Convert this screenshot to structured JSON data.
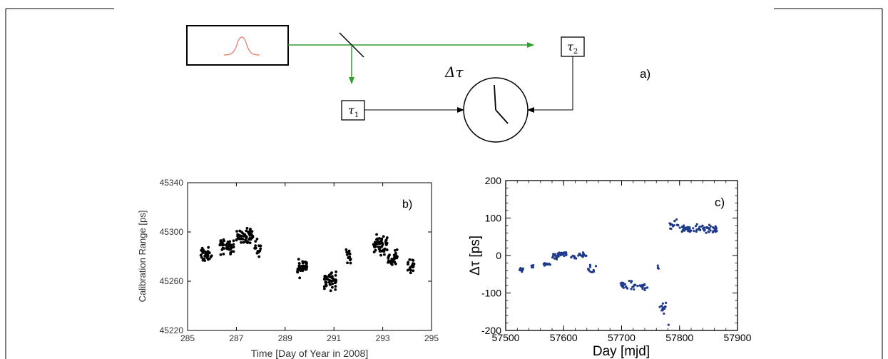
{
  "diagram": {
    "panel_label": "a)",
    "delta_tau": "Δτ",
    "tau1": {
      "symbol": "τ",
      "sub": "1"
    },
    "tau2": {
      "symbol": "τ",
      "sub": "2"
    }
  },
  "chart_data": [
    {
      "type": "scatter",
      "panel_label": "b)",
      "xlabel": "Time [Day of Year in 2008]",
      "ylabel": "Calibration Range [ps]",
      "xlim": [
        285,
        295
      ],
      "ylim": [
        45220,
        45340
      ],
      "xticks": [
        285,
        287,
        289,
        291,
        293,
        295
      ],
      "yticks": [
        45220,
        45260,
        45300,
        45340
      ],
      "marker_color": "#000000",
      "clusters": [
        {
          "x_range": [
            285.5,
            286.0
          ],
          "y_center": 45281,
          "y_spread": 5,
          "n": 40
        },
        {
          "x_range": [
            286.3,
            286.9
          ],
          "y_center": 45288,
          "y_spread": 5,
          "n": 42
        },
        {
          "x_range": [
            287.0,
            287.7
          ],
          "y_center": 45297,
          "y_spread": 5,
          "n": 55
        },
        {
          "x_range": [
            287.7,
            288.0
          ],
          "y_center": 45286,
          "y_spread": 6,
          "n": 14
        },
        {
          "x_range": [
            289.5,
            289.9
          ],
          "y_center": 45271,
          "y_spread": 6,
          "n": 42
        },
        {
          "x_range": [
            290.6,
            291.1
          ],
          "y_center": 45261,
          "y_spread": 6,
          "n": 50
        },
        {
          "x_range": [
            291.5,
            291.7
          ],
          "y_center": 45280,
          "y_spread": 6,
          "n": 16
        },
        {
          "x_range": [
            292.6,
            293.2
          ],
          "y_center": 45290,
          "y_spread": 6,
          "n": 52
        },
        {
          "x_range": [
            293.2,
            293.6
          ],
          "y_center": 45279,
          "y_spread": 6,
          "n": 30
        },
        {
          "x_range": [
            294.0,
            294.3
          ],
          "y_center": 45272,
          "y_spread": 5,
          "n": 20
        }
      ]
    },
    {
      "type": "scatter",
      "panel_label": "c)",
      "xlabel": "Day [mjd]",
      "ylabel": "Δτ [ps]",
      "xlim": [
        57500,
        57900
      ],
      "ylim": [
        -200,
        200
      ],
      "xticks": [
        57500,
        57600,
        57700,
        57800,
        57900
      ],
      "yticks": [
        -200,
        -100,
        0,
        100,
        200
      ],
      "marker_color": "#1f3a8a",
      "clusters": [
        {
          "x_range": [
            57523,
            57530
          ],
          "y_center": -38,
          "y_spread": 4,
          "n": 16
        },
        {
          "x_range": [
            57543,
            57548
          ],
          "y_center": -28,
          "y_spread": 3,
          "n": 6
        },
        {
          "x_range": [
            57565,
            57578
          ],
          "y_center": -23,
          "y_spread": 3,
          "n": 14
        },
        {
          "x_range": [
            57580,
            57592
          ],
          "y_center": -3,
          "y_spread": 6,
          "n": 16
        },
        {
          "x_range": [
            57590,
            57605
          ],
          "y_center": 5,
          "y_spread": 5,
          "n": 24
        },
        {
          "x_range": [
            57612,
            57625
          ],
          "y_center": -3,
          "y_spread": 4,
          "n": 10
        },
        {
          "x_range": [
            57625,
            57640
          ],
          "y_center": 0,
          "y_spread": 6,
          "n": 16
        },
        {
          "x_range": [
            57642,
            57656
          ],
          "y_center": -38,
          "y_spread": 10,
          "n": 10
        },
        {
          "x_range": [
            57695,
            57745
          ],
          "y_center": -80,
          "y_spread": 10,
          "n": 38
        },
        {
          "x_range": [
            57758,
            57764
          ],
          "y_center": -35,
          "y_spread": 8,
          "n": 4
        },
        {
          "x_range": [
            57765,
            57780
          ],
          "y_center": -140,
          "y_spread": 12,
          "n": 14
        },
        {
          "x_range": [
            57783,
            57800
          ],
          "y_center": 82,
          "y_spread": 12,
          "n": 14
        },
        {
          "x_range": [
            57800,
            57865
          ],
          "y_center": 70,
          "y_spread": 9,
          "n": 68
        }
      ],
      "points": [
        {
          "x": 57781,
          "y": -185
        }
      ]
    }
  ]
}
